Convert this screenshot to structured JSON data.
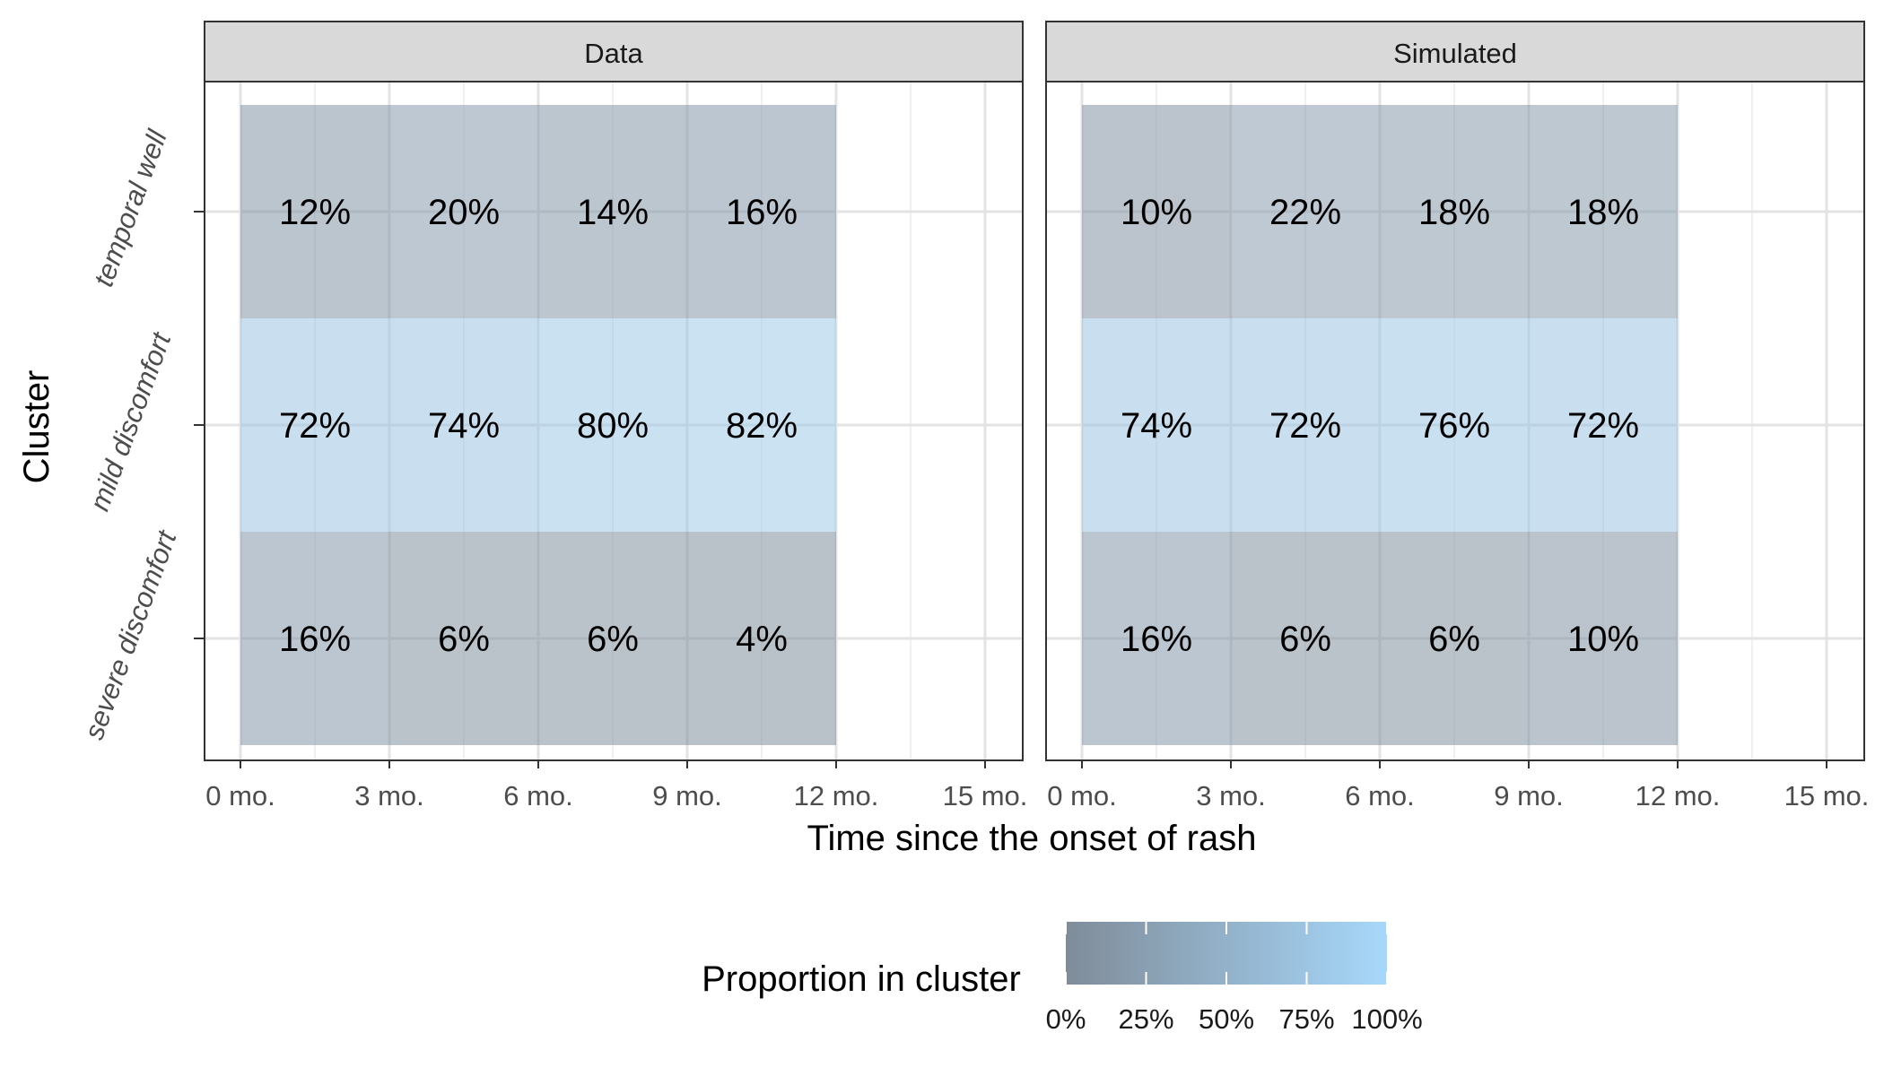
{
  "chart_data": {
    "type": "heatmap",
    "facets": [
      "Data",
      "Simulated"
    ],
    "ylabel": "Cluster",
    "xlabel": "Time since the onset of rash",
    "clusters": [
      "temporal well",
      "mild discomfort",
      "severe discomfort"
    ],
    "x_ticks": [
      {
        "value": 0,
        "label": "0 mo."
      },
      {
        "value": 3,
        "label": "3 mo."
      },
      {
        "value": 6,
        "label": "6 mo."
      },
      {
        "value": 9,
        "label": "9 mo."
      },
      {
        "value": 12,
        "label": "12 mo."
      },
      {
        "value": 15,
        "label": "15 mo."
      }
    ],
    "x_range": [
      0,
      15
    ],
    "bins": [
      [
        0,
        3
      ],
      [
        3,
        6
      ],
      [
        6,
        9
      ],
      [
        9,
        12
      ]
    ],
    "series": [
      {
        "facet": "Data",
        "values": [
          [
            12,
            20,
            14,
            16
          ],
          [
            72,
            74,
            80,
            82
          ],
          [
            16,
            6,
            6,
            4
          ]
        ]
      },
      {
        "facet": "Simulated",
        "values": [
          [
            10,
            22,
            18,
            18
          ],
          [
            74,
            72,
            76,
            72
          ],
          [
            16,
            6,
            6,
            10
          ]
        ]
      }
    ],
    "legend": {
      "title": "Proportion in cluster",
      "ticks": [
        "0%",
        "25%",
        "50%",
        "75%",
        "100%"
      ],
      "position": "bottom",
      "low_color": "#7f8c99",
      "high_color": "#a7d8fb"
    },
    "grid": true
  }
}
